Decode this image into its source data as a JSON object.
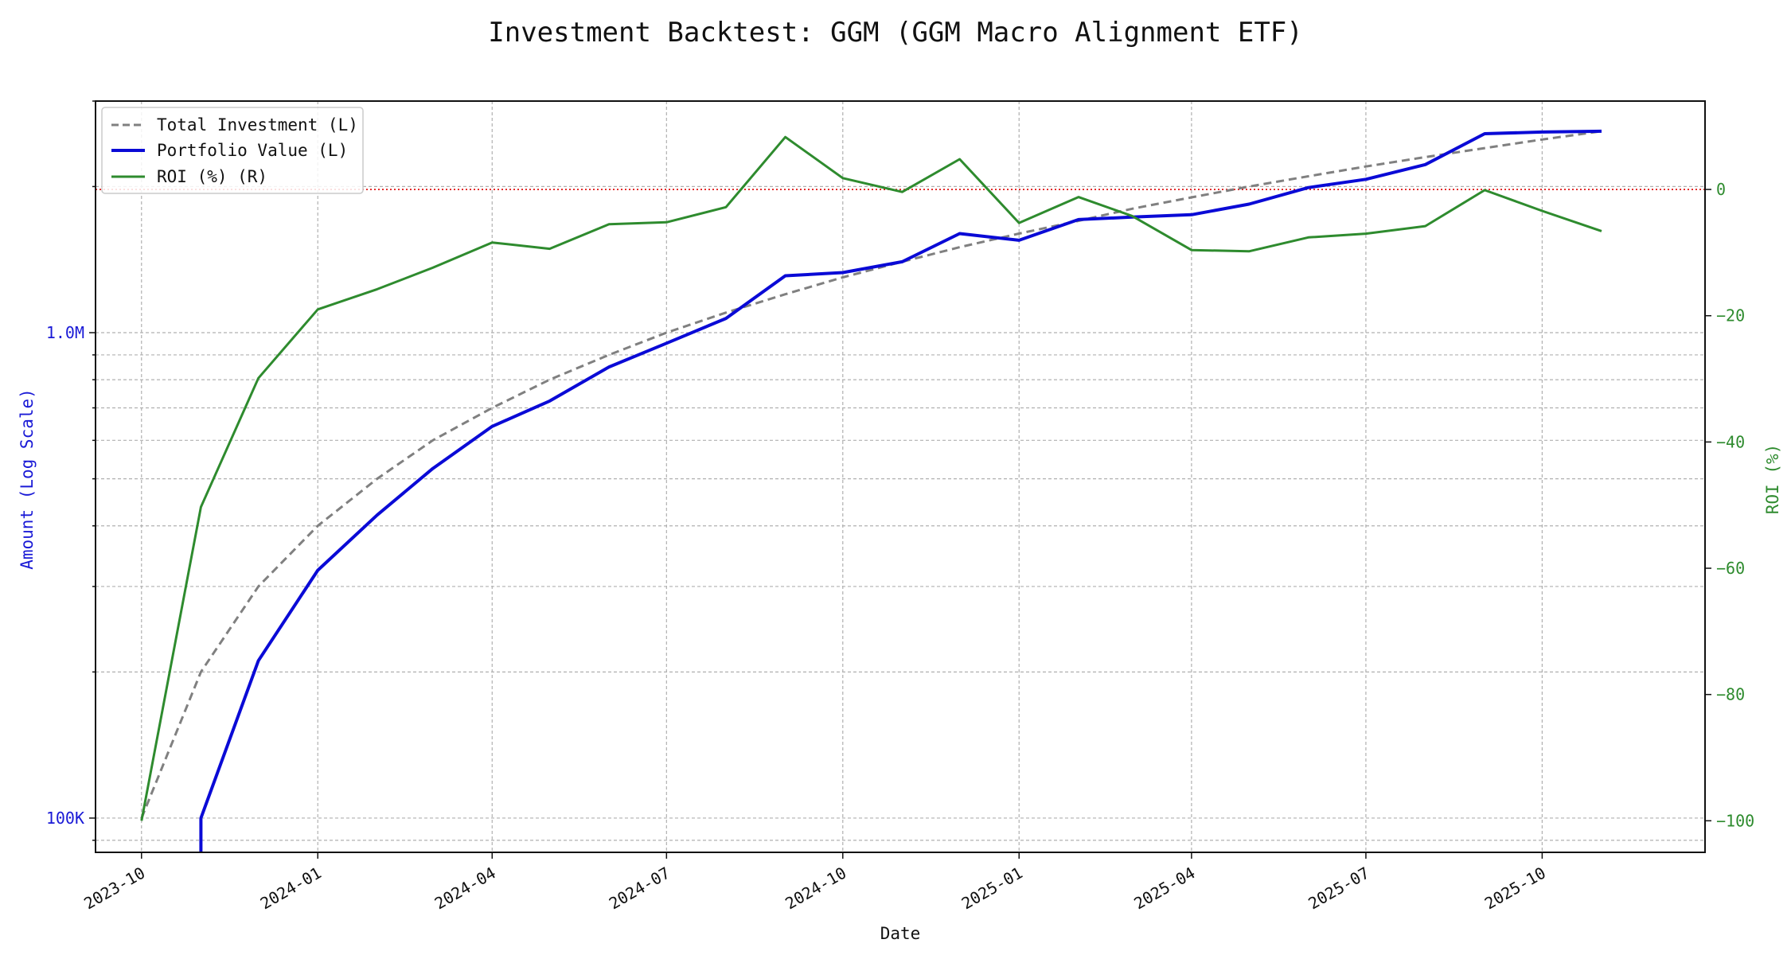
{
  "chart_data": {
    "type": "line",
    "title": "Investment Backtest: GGM (GGM Macro Alignment ETF)",
    "xlabel": "Date",
    "ylabel_left": "Amount (Log Scale)",
    "ylabel_right": "ROI (%)",
    "left_axis_scale": "log",
    "left_ylim": [
      85000,
      3000000
    ],
    "right_ylim": [
      -105,
      14
    ],
    "x_range": [
      "2023-09-07",
      "2025-12-25"
    ],
    "grid": true,
    "legend_position": "top-left",
    "left_tick_labels": [
      {
        "value": 100000,
        "label": "100K"
      },
      {
        "value": 1000000,
        "label": "1.0M"
      }
    ],
    "right_tick_labels": [
      {
        "value": 0,
        "label": "0"
      },
      {
        "value": -20,
        "label": "−20"
      },
      {
        "value": -40,
        "label": "−40"
      },
      {
        "value": -60,
        "label": "−60"
      },
      {
        "value": -80,
        "label": "−80"
      },
      {
        "value": -100,
        "label": "−100"
      }
    ],
    "x_tick_labels": [
      {
        "value": "2023-10-01",
        "label": "2023-10"
      },
      {
        "value": "2024-01-01",
        "label": "2024-01"
      },
      {
        "value": "2024-04-01",
        "label": "2024-04"
      },
      {
        "value": "2024-07-01",
        "label": "2024-07"
      },
      {
        "value": "2024-10-01",
        "label": "2024-10"
      },
      {
        "value": "2025-01-01",
        "label": "2025-01"
      },
      {
        "value": "2025-04-01",
        "label": "2025-04"
      },
      {
        "value": "2025-07-01",
        "label": "2025-07"
      },
      {
        "value": "2025-10-01",
        "label": "2025-10"
      }
    ],
    "reference_line": {
      "axis": "right",
      "value": 0,
      "color": "#dd0000",
      "style": "dotted"
    },
    "x": [
      "2023-10-01",
      "2023-11-01",
      "2023-12-01",
      "2024-01-01",
      "2024-02-01",
      "2024-03-01",
      "2024-04-01",
      "2024-05-01",
      "2024-06-01",
      "2024-07-01",
      "2024-08-01",
      "2024-09-01",
      "2024-10-01",
      "2024-11-01",
      "2024-12-01",
      "2025-01-01",
      "2025-02-01",
      "2025-03-01",
      "2025-04-01",
      "2025-05-01",
      "2025-06-01",
      "2025-07-01",
      "2025-08-01",
      "2025-09-01",
      "2025-10-01",
      "2025-11-01"
    ],
    "series": [
      {
        "name": "Total Investment (L)",
        "axis": "left",
        "color": "#808080",
        "style": "dashed",
        "values": [
          100000,
          200000,
          300000,
          400000,
          500000,
          600000,
          700000,
          800000,
          900000,
          1000000,
          1100000,
          1200000,
          1300000,
          1400000,
          1500000,
          1600000,
          1700000,
          1800000,
          1900000,
          2000000,
          2100000,
          2200000,
          2300000,
          2400000,
          2500000,
          2600000
        ]
      },
      {
        "name": "Portfolio Value (L)",
        "axis": "left",
        "color": "#0a0ad6",
        "style": "solid",
        "values": [
          null,
          100000,
          211000,
          324000,
          421000,
          525000,
          641000,
          723000,
          850000,
          951000,
          1070000,
          1310000,
          1330000,
          1400000,
          1600000,
          1550000,
          1710000,
          1730000,
          1750000,
          1840000,
          1990000,
          2070000,
          2220000,
          2570000,
          2590000,
          2600000
        ]
      },
      {
        "name": "ROI (%) (R)",
        "axis": "right",
        "color": "#2e8b2e",
        "style": "solid",
        "values": [
          -100,
          -50.3,
          -29.9,
          -19,
          -15.8,
          -12.4,
          -8.4,
          -9.4,
          -5.5,
          -5.2,
          -2.8,
          8.3,
          1.8,
          -0.4,
          4.8,
          -5.3,
          -1.2,
          -4.2,
          -9.6,
          -9.8,
          -7.6,
          -7,
          -5.8,
          -0.1,
          -3.4,
          -6.6
        ]
      }
    ]
  }
}
